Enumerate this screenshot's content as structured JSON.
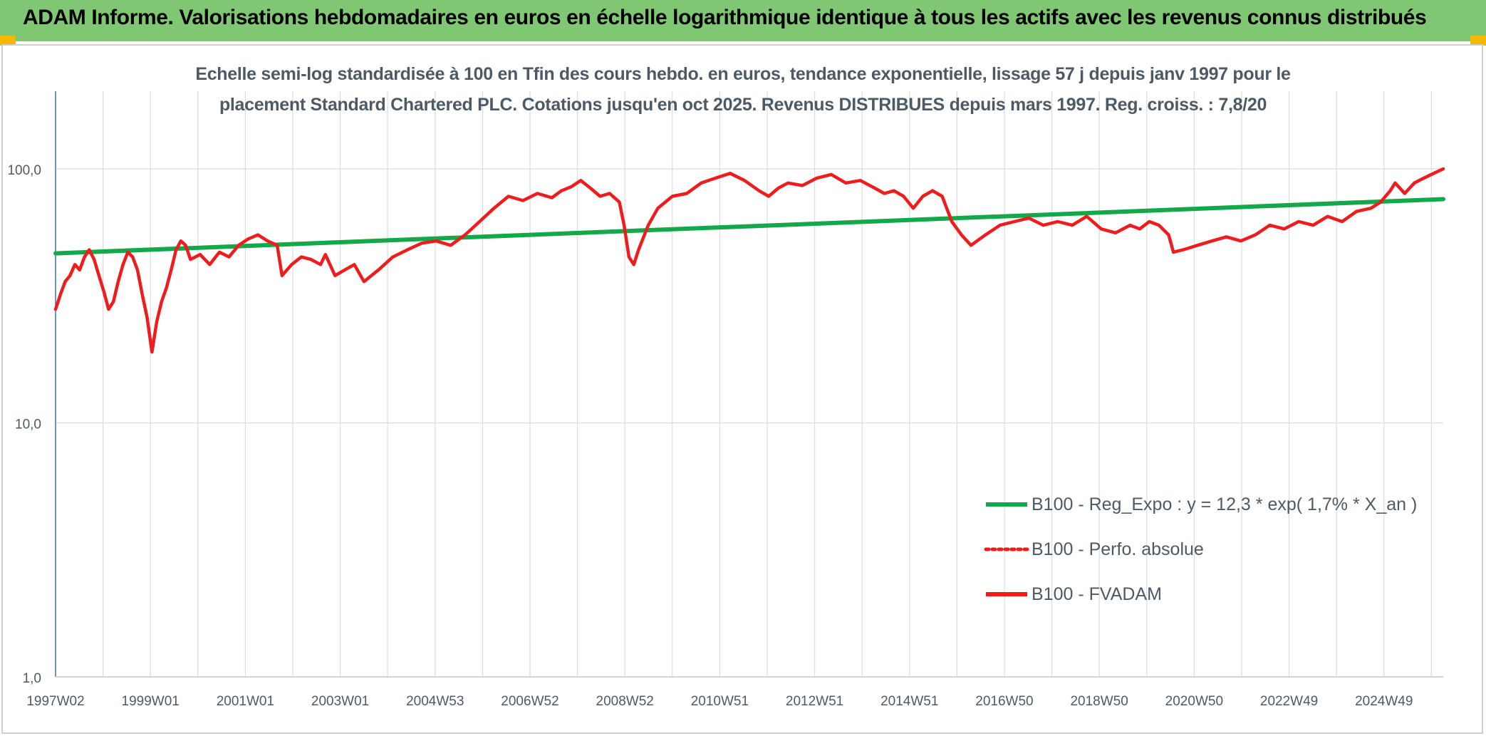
{
  "banner": {
    "title": "ADAM Informe. Valorisations hebdomadaires en euros en échelle logarithmique identique à tous les actifs avec les revenus connus distribués"
  },
  "colors": {
    "banner_bg": "#80c774",
    "corner_accent": "#f5b800",
    "regression": "#13a84a",
    "fvadam": "#ee1c1c",
    "perfo": "#ee1c1c",
    "grid": "#dcdcdc",
    "axis": "#4472c4"
  },
  "chart_data": {
    "type": "line",
    "title_line1": "Echelle semi-log standardisée à 100 en Tfin des cours hebdo. en euros, tendance exponentielle, lissage 57 j depuis janv 1997 pour le",
    "title_line2": "placement Standard Chartered PLC. Cotations jusqu'en oct 2025. Revenus DISTRIBUES depuis mars 1997. Reg. croiss. : 7,8/20",
    "y_scale": "log",
    "ylim": [
      1,
      200
    ],
    "y_ticks": [
      1,
      10,
      100
    ],
    "y_tick_labels": [
      "1,0",
      "10,0",
      "100,0"
    ],
    "x_range": [
      1997.0,
      2025.8
    ],
    "x_tick_labels": [
      "1997W02",
      "1999W01",
      "2001W01",
      "2003W01",
      "2004W53",
      "2006W52",
      "2008W52",
      "2010W51",
      "2012W51",
      "2014W51",
      "2016W50",
      "2018W50",
      "2020W50",
      "2022W49",
      "2024W49"
    ],
    "grid": true,
    "legend_position": "bottom-right",
    "legend": [
      {
        "label": "B100 - Reg_Expo : y = 12,3 * exp( 1,7% *  X_an )",
        "style": "solid",
        "color": "#13a84a"
      },
      {
        "label": "B100 - Perfo. absolue",
        "style": "dotted",
        "color": "#ee1c1c"
      },
      {
        "label": "B100 - FVADAM",
        "style": "solid",
        "color": "#ee1c1c"
      }
    ],
    "series": [
      {
        "name": "B100 - Reg_Expo : y = 12,3 * exp( 1,7% *  X_an )",
        "color": "#13a84a",
        "x": [
          1997.0,
          2025.8
        ],
        "y": [
          46.5,
          76.0
        ]
      },
      {
        "name": "B100 - Perfo. absolue",
        "color": "#ee1c1c",
        "x": [],
        "y": []
      },
      {
        "name": "B100 - FVADAM",
        "color": "#ee1c1c",
        "x": [
          1997.0,
          1997.1,
          1997.2,
          1997.3,
          1997.4,
          1997.5,
          1997.6,
          1997.7,
          1997.8,
          1997.9,
          1998.0,
          1998.1,
          1998.2,
          1998.3,
          1998.4,
          1998.5,
          1998.6,
          1998.7,
          1998.8,
          1998.9,
          1999.0,
          1999.1,
          1999.2,
          1999.3,
          1999.4,
          1999.5,
          1999.6,
          1999.7,
          1999.8,
          2000.0,
          2000.2,
          2000.4,
          2000.6,
          2000.8,
          2001.0,
          2001.2,
          2001.4,
          2001.6,
          2001.7,
          2001.9,
          2002.1,
          2002.3,
          2002.5,
          2002.6,
          2002.8,
          2003.0,
          2003.2,
          2003.4,
          2003.7,
          2004.0,
          2004.3,
          2004.6,
          2004.9,
          2005.2,
          2005.5,
          2005.8,
          2006.1,
          2006.4,
          2006.7,
          2007.0,
          2007.3,
          2007.5,
          2007.7,
          2007.9,
          2008.1,
          2008.3,
          2008.5,
          2008.7,
          2008.8,
          2008.9,
          2009.0,
          2009.1,
          2009.3,
          2009.5,
          2009.8,
          2010.1,
          2010.4,
          2010.7,
          2011.0,
          2011.3,
          2011.6,
          2011.8,
          2012.0,
          2012.2,
          2012.5,
          2012.8,
          2013.1,
          2013.4,
          2013.7,
          2014.0,
          2014.2,
          2014.4,
          2014.6,
          2014.8,
          2015.0,
          2015.2,
          2015.4,
          2015.6,
          2015.8,
          2016.0,
          2016.3,
          2016.6,
          2016.9,
          2017.2,
          2017.5,
          2017.8,
          2018.1,
          2018.4,
          2018.7,
          2019.0,
          2019.3,
          2019.5,
          2019.7,
          2019.9,
          2020.1,
          2020.2,
          2020.4,
          2020.7,
          2021.0,
          2021.3,
          2021.6,
          2021.9,
          2022.2,
          2022.5,
          2022.8,
          2023.1,
          2023.4,
          2023.7,
          2024.0,
          2024.3,
          2024.5,
          2024.7,
          2024.8,
          2025.0,
          2025.2,
          2025.4,
          2025.6,
          2025.8
        ],
        "y": [
          28,
          32,
          36,
          38,
          42,
          40,
          45,
          48,
          44,
          38,
          33,
          28,
          30,
          36,
          42,
          47,
          45,
          40,
          32,
          26,
          19,
          25,
          30,
          34,
          40,
          48,
          52,
          50,
          44,
          46,
          42,
          47,
          45,
          50,
          53,
          55,
          52,
          50,
          38,
          42,
          45,
          44,
          42,
          46,
          38,
          40,
          42,
          36,
          40,
          45,
          48,
          51,
          52,
          50,
          55,
          62,
          70,
          78,
          75,
          80,
          77,
          82,
          85,
          90,
          84,
          78,
          80,
          74,
          60,
          45,
          42,
          48,
          60,
          70,
          78,
          80,
          88,
          92,
          96,
          90,
          82,
          78,
          84,
          88,
          86,
          92,
          95,
          88,
          90,
          84,
          80,
          82,
          78,
          70,
          78,
          82,
          78,
          62,
          55,
          50,
          55,
          60,
          62,
          64,
          60,
          62,
          60,
          65,
          58,
          56,
          60,
          58,
          62,
          60,
          55,
          47,
          48,
          50,
          52,
          54,
          52,
          55,
          60,
          58,
          62,
          60,
          65,
          62,
          68,
          70,
          74,
          82,
          88,
          80,
          88,
          92,
          96,
          100
        ]
      }
    ]
  }
}
